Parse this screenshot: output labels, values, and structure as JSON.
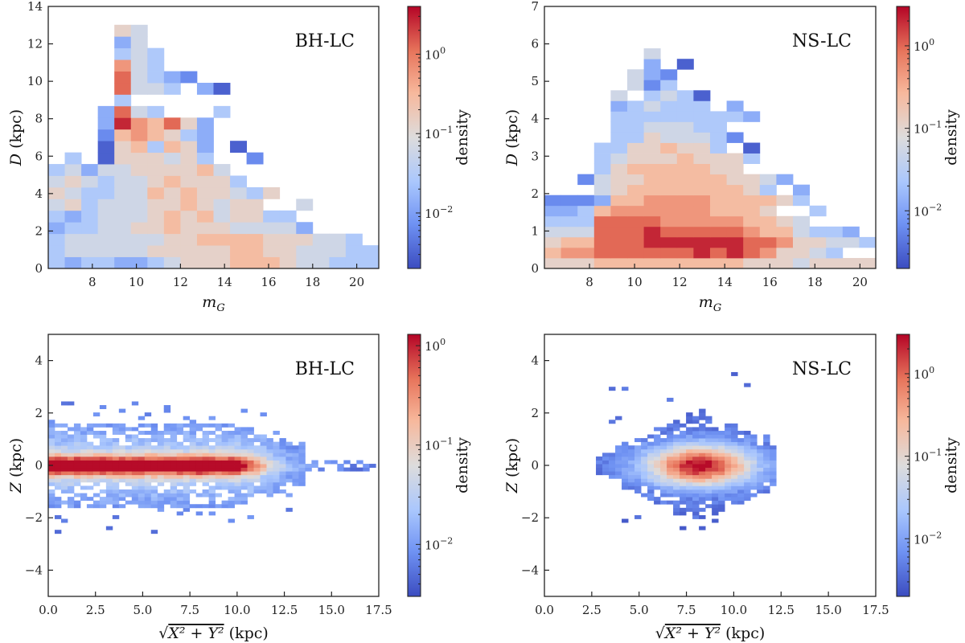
{
  "figure": {
    "colormap": "coolwarm",
    "colormap_stops": [
      "#3b4cc0",
      "#6f92f3",
      "#aac7fd",
      "#dddcdc",
      "#f7b89c",
      "#e7745b",
      "#b40426"
    ],
    "colorbar_label": "density"
  },
  "chart_data": [
    {
      "type": "heatmap",
      "panel": "top-left",
      "title": "BH-LC",
      "xlabel": "m_G",
      "ylabel": "D (kpc)",
      "xlim": [
        6.0,
        21.0
      ],
      "ylim": [
        0,
        14
      ],
      "xticks": [
        8,
        10,
        12,
        14,
        16,
        18,
        20
      ],
      "xtick_labels": [
        "8",
        "10",
        "12",
        "14",
        "16",
        "18",
        "20"
      ],
      "yticks": [
        0,
        2,
        4,
        6,
        8,
        10,
        12,
        14
      ],
      "ytick_labels": [
        "0",
        "2",
        "4",
        "6",
        "8",
        "10",
        "12",
        "14"
      ],
      "colorbar": {
        "scale": "log",
        "range": [
          0.002,
          4.0
        ],
        "ticks": [
          0.01,
          0.1,
          1
        ],
        "tick_labels": [
          "10^-2",
          "10^-1",
          "10^0"
        ]
      },
      "bin_x0": 6.0,
      "bin_dx": 0.75,
      "bin_y0": 0.0,
      "bin_dy": 0.62,
      "grid_rows_bottom_up": [
        "323322345556665443333332",
        "34444455555665544433.....",
        "3444444556666555443.....",
        "2334455655544442........",
        "323444565645533.........",
        "4534445565455..4........",
        "54334465655435..........",
        "454344565553............",
        "34244555564.............",
        ".3.0555453..1...........",
        "...0563652.0............",
        "...1676532..............",
        "...2976852..............",
        "...2843...3..............",
        "....3.........",
        "....8443.20",
        "....84321.....",
        "....743.........",
        "....343.........",
        "....24..........",
        "....54.........."
      ],
      "note": "cell codes 0-9 map to log-density from colorbar min to max; '.' = empty"
    },
    {
      "type": "heatmap",
      "panel": "top-right",
      "title": "NS-LC",
      "xlabel": "m_G",
      "ylabel": "D (kpc)",
      "xlim": [
        6.0,
        20.7
      ],
      "ylim": [
        0,
        7
      ],
      "xticks": [
        8,
        10,
        12,
        14,
        16,
        18,
        20
      ],
      "xtick_labels": [
        "8",
        "10",
        "12",
        "14",
        "16",
        "18",
        "20"
      ],
      "yticks": [
        0,
        1,
        2,
        3,
        4,
        5,
        6,
        7
      ],
      "ytick_labels": [
        "0",
        "1",
        "2",
        "3",
        "4",
        "5",
        "6",
        "7"
      ],
      "colorbar": {
        "scale": "log",
        "range": [
          0.002,
          3.0
        ],
        "ticks": [
          0.01,
          0.1,
          1
        ],
        "tick_labels": [
          "10^-2",
          "10^-1",
          "10^0"
        ]
      },
      "bin_x0": 6.0,
      "bin_dx": 0.735,
      "bin_y0": 0.0,
      "bin_dy": 0.28,
      "grid_rows_bottom_up": [
        "55566666666655545555566654",
        "677888888989875543.......",
        "566888999999887554432.....",
        "4448889888887664332.......",
        "3338888777776654..........",
        "22367777776665..3..........",
        "1112667777666653..........",
        "...45666666653.2..........",
        "..1455666665542...........",
        "...356666655..............",
        "...3455565553.............",
        "...33556553.0.............",
        "....33544431..............",
        "....3344433..............",
        "....333333332..............",
        "....234333.2..............",
        "....4.3430..............",
        ".....413....",
        ".....421.....",
        "......2.0.....",
        "......4......."
      ],
      "note": "cell codes 0-9 map to log-density from colorbar min to max; '.' = empty"
    },
    {
      "type": "heatmap",
      "panel": "bottom-left",
      "title": "BH-LC",
      "xlabel": "sqrt(X^2 + Y^2) (kpc)",
      "ylabel": "Z (kpc)",
      "xlim": [
        0.0,
        17.5
      ],
      "ylim": [
        -5,
        5
      ],
      "xticks": [
        0.0,
        2.5,
        5.0,
        7.5,
        10.0,
        12.5,
        15.0,
        17.5
      ],
      "xtick_labels": [
        "0.0",
        "2.5",
        "5.0",
        "7.5",
        "10.0",
        "12.5",
        "15.0",
        "17.5"
      ],
      "yticks": [
        -4,
        -2,
        0,
        2,
        4
      ],
      "ytick_labels": [
        "−4",
        "−2",
        "0",
        "2",
        "4"
      ],
      "colorbar": {
        "scale": "log",
        "range": [
          0.003,
          1.3
        ],
        "ticks": [
          0.01,
          0.1,
          1
        ],
        "tick_labels": [
          "10^-2",
          "10^-1",
          "10^0"
        ]
      },
      "description": "thin disk band concentrated near Z=0 from R=0 to ~10 kpc, peak density near R~0.5 and R~8.2 kpc, sparse low-density outliers to |Z|~2.4 and R~17"
    },
    {
      "type": "heatmap",
      "panel": "bottom-right",
      "title": "NS-LC",
      "xlabel": "sqrt(X^2 + Y^2) (kpc)",
      "ylabel": "Z (kpc)",
      "xlim": [
        0.0,
        17.5
      ],
      "ylim": [
        -5,
        5
      ],
      "xticks": [
        0.0,
        2.5,
        5.0,
        7.5,
        10.0,
        12.5,
        15.0,
        17.5
      ],
      "xtick_labels": [
        "0.0",
        "2.5",
        "5.0",
        "7.5",
        "10.0",
        "12.5",
        "15.0",
        "17.5"
      ],
      "yticks": [
        -4,
        -2,
        0,
        2,
        4
      ],
      "ytick_labels": [
        "−4",
        "−2",
        "0",
        "2",
        "4"
      ],
      "colorbar": {
        "scale": "log",
        "range": [
          0.002,
          3.0
        ],
        "ticks": [
          0.01,
          0.1,
          1
        ],
        "tick_labels": [
          "10^-2",
          "10^-1",
          "10^0"
        ]
      },
      "description": "compact lens-shaped distribution centered at R~8.2 kpc, Z~0, extending R 2.7-12.3 kpc and Z -1.8 to 3.1"
    }
  ]
}
